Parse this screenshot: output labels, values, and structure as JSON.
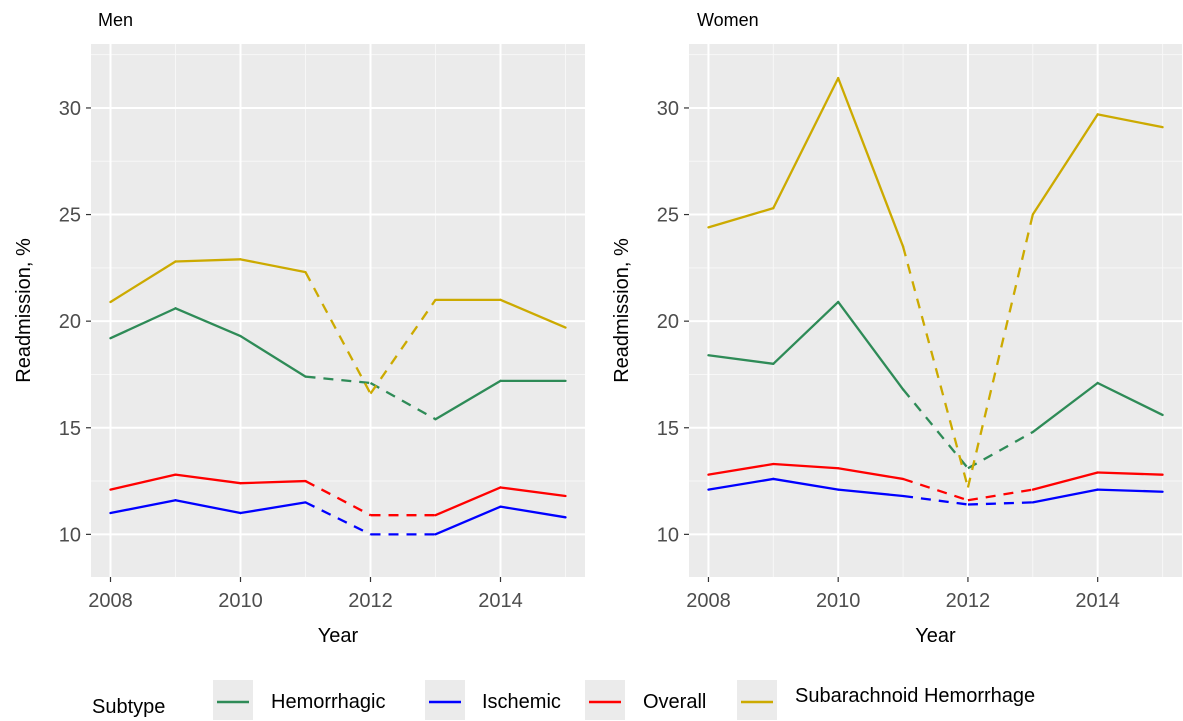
{
  "legend": {
    "title": "Subtype",
    "entries": [
      {
        "name": "Hemorrhagic",
        "color": "#2e8b57"
      },
      {
        "name": "Ischemic",
        "color": "#0000ff"
      },
      {
        "name": "Overall",
        "color": "#ff0000"
      },
      {
        "name": "Subarachnoid Hemorrhage",
        "color": "#ccaa00"
      }
    ],
    "placement": "bottom"
  },
  "chart_data": [
    {
      "type": "line",
      "title": "Men",
      "xlabel": "Year",
      "ylabel": "Readmission, %",
      "xlim": [
        2007.7,
        2015.3
      ],
      "ylim": [
        8,
        33
      ],
      "xticks": [
        2008,
        2010,
        2012,
        2014
      ],
      "yticks": [
        10,
        15,
        20,
        25,
        30
      ],
      "grid": true,
      "dashed_between": [
        2011,
        2013
      ],
      "x": [
        2008,
        2009,
        2010,
        2011,
        2012,
        2013,
        2014,
        2015
      ],
      "series": [
        {
          "name": "Hemorrhagic",
          "values": [
            19.2,
            20.6,
            19.3,
            17.4,
            17.1,
            15.4,
            17.2,
            17.2
          ]
        },
        {
          "name": "Ischemic",
          "values": [
            11.0,
            11.6,
            11.0,
            11.5,
            10.0,
            10.0,
            11.3,
            10.8
          ]
        },
        {
          "name": "Overall",
          "values": [
            12.1,
            12.8,
            12.4,
            12.5,
            10.9,
            10.9,
            12.2,
            11.8
          ]
        },
        {
          "name": "Subarachnoid Hemorrhage",
          "values": [
            20.9,
            22.8,
            22.9,
            22.3,
            16.6,
            21.0,
            21.0,
            19.7
          ]
        }
      ]
    },
    {
      "type": "line",
      "title": "Women",
      "xlabel": "Year",
      "ylabel": "Readmission, %",
      "xlim": [
        2007.7,
        2015.3
      ],
      "ylim": [
        8,
        33
      ],
      "xticks": [
        2008,
        2010,
        2012,
        2014
      ],
      "yticks": [
        10,
        15,
        20,
        25,
        30
      ],
      "grid": true,
      "dashed_between": [
        2011,
        2013
      ],
      "x": [
        2008,
        2009,
        2010,
        2011,
        2012,
        2013,
        2014,
        2015
      ],
      "series": [
        {
          "name": "Hemorrhagic",
          "values": [
            18.4,
            18.0,
            20.9,
            16.8,
            13.1,
            14.8,
            17.1,
            15.6
          ]
        },
        {
          "name": "Ischemic",
          "values": [
            12.1,
            12.6,
            12.1,
            11.8,
            11.4,
            11.5,
            12.1,
            12.0
          ]
        },
        {
          "name": "Overall",
          "values": [
            12.8,
            13.3,
            13.1,
            12.6,
            11.6,
            12.1,
            12.9,
            12.8
          ]
        },
        {
          "name": "Subarachnoid Hemorrhage",
          "values": [
            24.4,
            25.3,
            31.4,
            23.5,
            12.2,
            25.0,
            29.7,
            29.1
          ]
        }
      ]
    }
  ]
}
